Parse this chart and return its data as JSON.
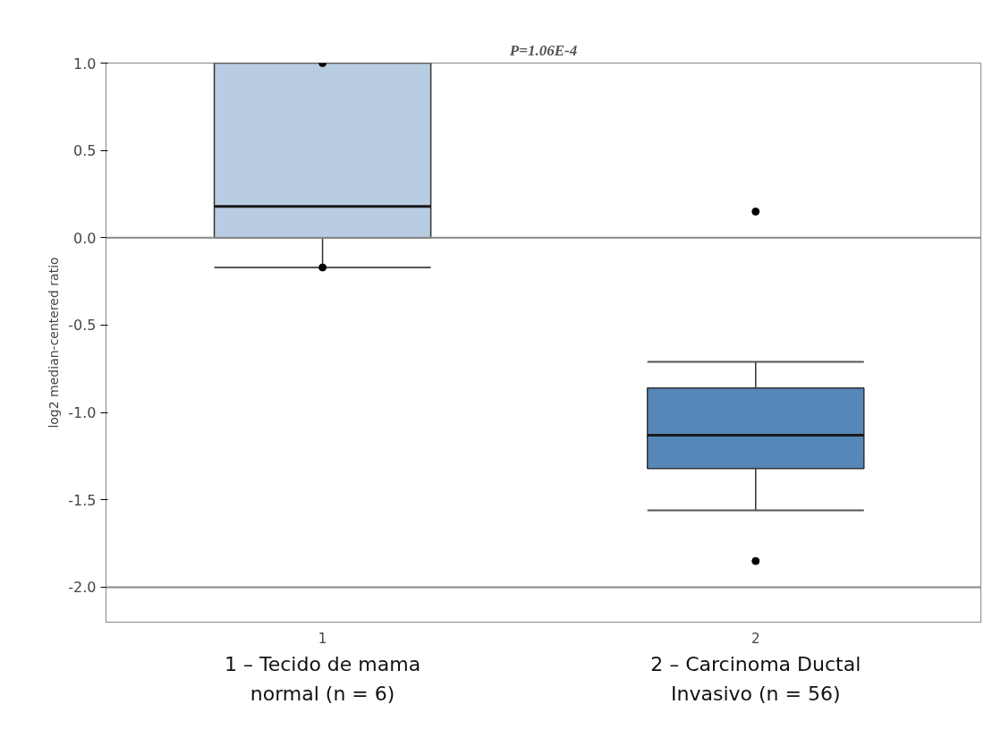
{
  "chart_data": {
    "type": "box",
    "title": "P=1.06E-4",
    "ylabel": "log2 median-centered ratio",
    "categories": [
      "1",
      "2"
    ],
    "boxes": [
      {
        "low": -0.17,
        "q1": 0.0,
        "median": 0.18,
        "q3": 1.0,
        "high": 1.0,
        "outliers": [
          1.0,
          -0.17
        ]
      },
      {
        "low": -1.56,
        "q1": -1.32,
        "median": -1.13,
        "q3": -0.86,
        "high": -0.71,
        "outliers": [
          0.15,
          -1.85
        ]
      }
    ],
    "colors": [
      "#b8cde2",
      "#5587b8"
    ],
    "ylim": [
      -2.2,
      1.0
    ],
    "yticks": [
      {
        "value": 1.0,
        "label": "1.0"
      },
      0.5,
      {
        "value": 0.0,
        "label": "0.0"
      },
      -0.5,
      {
        "value": -1.0,
        "label": "-1.0"
      },
      -1.5,
      {
        "value": -2.0,
        "label": "-2.0"
      }
    ],
    "grid": false,
    "ref_lines": [
      {
        "axis": "y",
        "value": 0.0,
        "label": null
      },
      {
        "axis": "y",
        "value": -2.0,
        "label": null
      }
    ],
    "annotations": [
      "1 – Tecido de mama normal (n = 6)",
      "2 – Carcinoma Ductal Invasivo (n = 56)"
    ]
  }
}
